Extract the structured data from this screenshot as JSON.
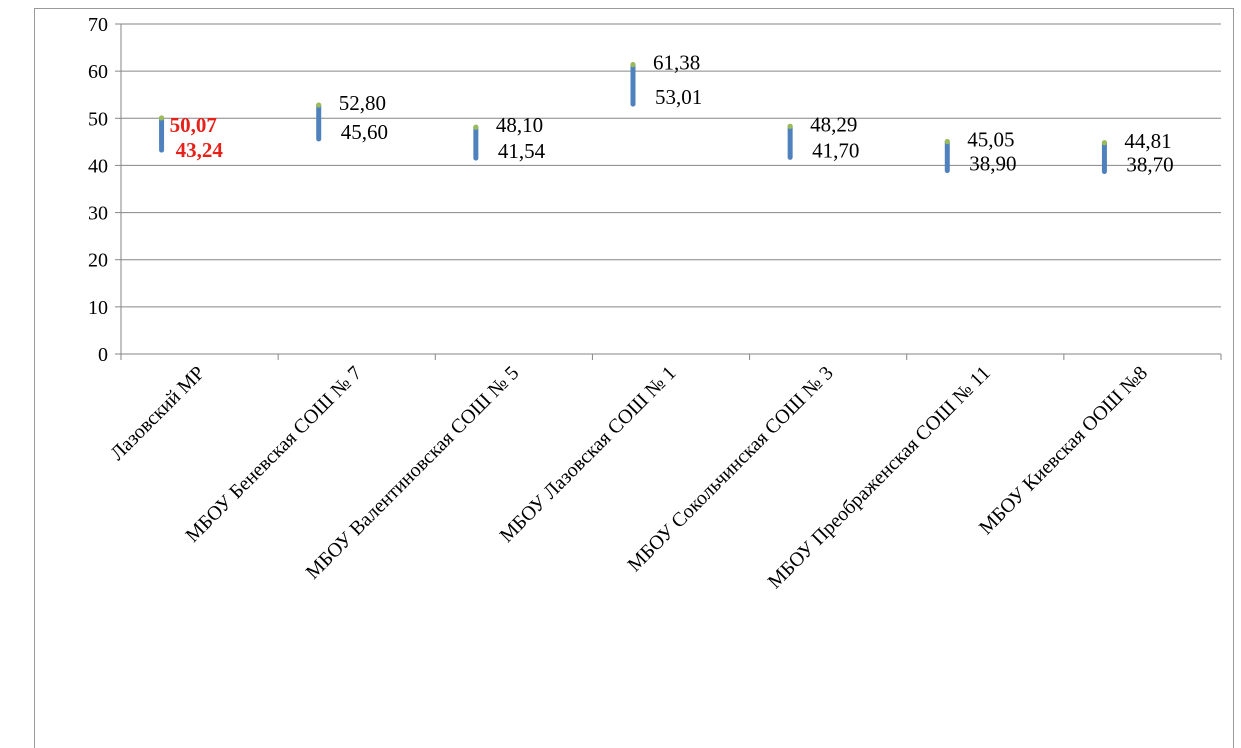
{
  "chart_data": {
    "type": "bar",
    "subtype": "high-low range",
    "title": "",
    "xlabel": "",
    "ylabel": "",
    "ylim": [
      0,
      70
    ],
    "y_ticks": [
      0,
      10,
      20,
      30,
      40,
      50,
      60,
      70
    ],
    "grid": "horizontal major gridlines",
    "legend": "none",
    "categories": [
      "Лазовский МР",
      "МБОУ Беневская СОШ № 7",
      "МБОУ Валентиновская СОШ № 5",
      "МБОУ Лазовская СОШ № 1",
      "МБОУ Сокольчинская СОШ № 3",
      "МБОУ Преображенская СОШ № 11",
      "МБОУ Киевская ООШ №8"
    ],
    "series": [
      {
        "values": [
          50.07,
          52.8,
          48.1,
          61.38,
          48.29,
          45.05,
          44.81
        ]
      },
      {
        "values": [
          43.24,
          45.6,
          41.54,
          53.01,
          41.7,
          38.9,
          38.7
        ]
      }
    ],
    "high_labels": [
      "50,07",
      "52,80",
      "48,10",
      "61,38",
      "48,29",
      "45,05",
      "44,81"
    ],
    "low_labels": [
      "43,24",
      "45,60",
      "41,54",
      "53,01",
      "41,70",
      "38,90",
      "38,70"
    ],
    "highlight_index": 0,
    "colors": {
      "bar": "#4f81bd",
      "high_marker": "#9bbb59",
      "highlight_label": "#e8201a",
      "gridline": "#868686",
      "axis": "#868686",
      "frame": "#9a9a9a"
    }
  }
}
